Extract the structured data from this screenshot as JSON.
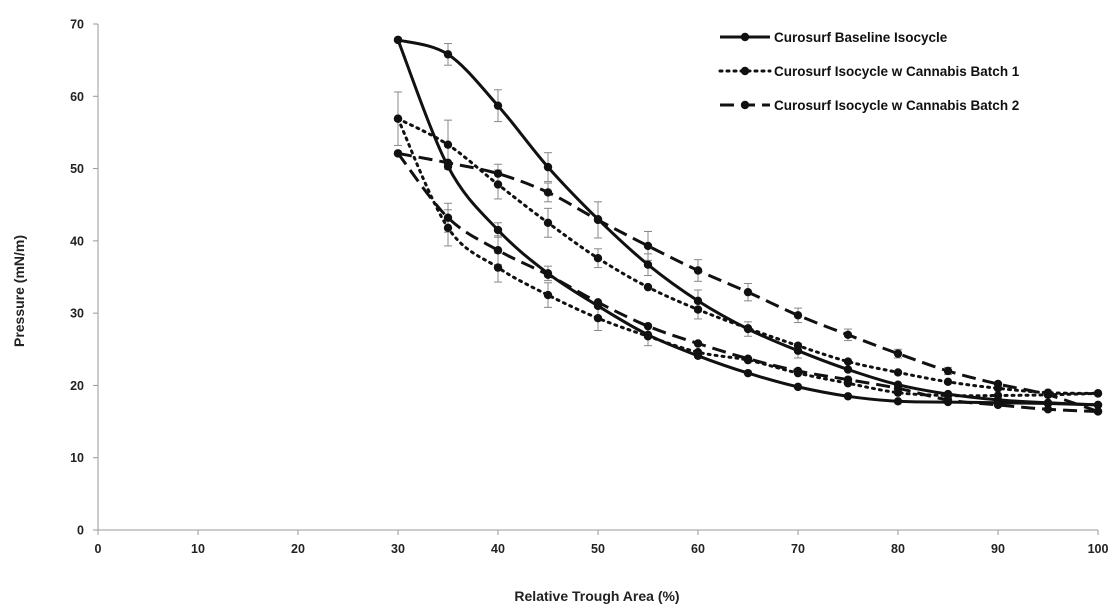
{
  "chart_data": {
    "type": "line",
    "title": "",
    "xlabel": "Relative Trough Area (%)",
    "ylabel": "Pressure (mN/m)",
    "xlim": [
      0,
      100
    ],
    "ylim": [
      0,
      70
    ],
    "x_ticks": [
      0,
      10,
      20,
      30,
      40,
      50,
      60,
      70,
      80,
      90,
      100
    ],
    "y_ticks": [
      0,
      10,
      20,
      30,
      40,
      50,
      60,
      70
    ],
    "grid": false,
    "legend_position": "top-right",
    "colors": {
      "series": "#111111",
      "error_bar": "#888888",
      "axis": "#999999"
    },
    "series": [
      {
        "name": "Curosurf Baseline Isocycle",
        "style": "solid",
        "compression": [
          {
            "x": 100,
            "y": 17.3
          },
          {
            "x": 95,
            "y": 17.5
          },
          {
            "x": 90,
            "y": 17.6
          },
          {
            "x": 85,
            "y": 17.7
          },
          {
            "x": 80,
            "y": 17.8
          },
          {
            "x": 75,
            "y": 18.5
          },
          {
            "x": 70,
            "y": 19.8
          },
          {
            "x": 65,
            "y": 21.7
          },
          {
            "x": 60,
            "y": 24.1
          },
          {
            "x": 55,
            "y": 27.0
          },
          {
            "x": 50,
            "y": 31.0
          },
          {
            "x": 45,
            "y": 35.5
          },
          {
            "x": 40,
            "y": 41.5
          },
          {
            "x": 35,
            "y": 50.3
          },
          {
            "x": 30,
            "y": 67.8
          }
        ],
        "expansion": [
          {
            "x": 30,
            "y": 67.8
          },
          {
            "x": 35,
            "y": 65.8
          },
          {
            "x": 40,
            "y": 58.7
          },
          {
            "x": 45,
            "y": 50.2
          },
          {
            "x": 50,
            "y": 43.0
          },
          {
            "x": 55,
            "y": 36.7
          },
          {
            "x": 60,
            "y": 31.7
          },
          {
            "x": 65,
            "y": 27.8
          },
          {
            "x": 70,
            "y": 24.8
          },
          {
            "x": 75,
            "y": 22.2
          },
          {
            "x": 80,
            "y": 20.1
          },
          {
            "x": 85,
            "y": 18.8
          },
          {
            "x": 90,
            "y": 18.0
          },
          {
            "x": 95,
            "y": 17.6
          },
          {
            "x": 100,
            "y": 17.3
          }
        ],
        "error_bars": [
          {
            "x": 35,
            "y": 65.8,
            "err": 1.5
          },
          {
            "x": 40,
            "y": 58.7,
            "err": 2.2
          },
          {
            "x": 45,
            "y": 50.2,
            "err": 2.0
          },
          {
            "x": 40,
            "y": 41.5,
            "err": 1.0
          },
          {
            "x": 45,
            "y": 35.5,
            "err": 1.0
          },
          {
            "x": 55,
            "y": 36.7,
            "err": 1.5
          },
          {
            "x": 60,
            "y": 31.7,
            "err": 1.5
          },
          {
            "x": 65,
            "y": 27.8,
            "err": 1.0
          },
          {
            "x": 70,
            "y": 24.8,
            "err": 1.0
          }
        ]
      },
      {
        "name": "Curosurf Isocycle w Cannabis Batch 1",
        "style": "dotted",
        "compression": [
          {
            "x": 100,
            "y": 18.9
          },
          {
            "x": 95,
            "y": 18.7
          },
          {
            "x": 90,
            "y": 18.6
          },
          {
            "x": 85,
            "y": 18.6
          },
          {
            "x": 80,
            "y": 19.0
          },
          {
            "x": 75,
            "y": 20.3
          },
          {
            "x": 70,
            "y": 21.7
          },
          {
            "x": 65,
            "y": 23.5
          },
          {
            "x": 60,
            "y": 24.6
          },
          {
            "x": 55,
            "y": 26.8
          },
          {
            "x": 50,
            "y": 29.3
          },
          {
            "x": 45,
            "y": 32.5
          },
          {
            "x": 40,
            "y": 36.3
          },
          {
            "x": 35,
            "y": 41.8
          },
          {
            "x": 30,
            "y": 56.9
          }
        ],
        "expansion": [
          {
            "x": 30,
            "y": 56.9
          },
          {
            "x": 35,
            "y": 53.3
          },
          {
            "x": 40,
            "y": 47.8
          },
          {
            "x": 45,
            "y": 42.5
          },
          {
            "x": 50,
            "y": 37.6
          },
          {
            "x": 55,
            "y": 33.6
          },
          {
            "x": 60,
            "y": 30.5
          },
          {
            "x": 65,
            "y": 27.9
          },
          {
            "x": 70,
            "y": 25.5
          },
          {
            "x": 75,
            "y": 23.3
          },
          {
            "x": 80,
            "y": 21.8
          },
          {
            "x": 85,
            "y": 20.5
          },
          {
            "x": 90,
            "y": 19.6
          },
          {
            "x": 95,
            "y": 19.0
          },
          {
            "x": 100,
            "y": 18.9
          }
        ],
        "error_bars": [
          {
            "x": 30,
            "y": 56.9,
            "err": 3.7
          },
          {
            "x": 35,
            "y": 53.3,
            "err": 3.4
          },
          {
            "x": 40,
            "y": 47.8,
            "err": 2.0
          },
          {
            "x": 45,
            "y": 42.5,
            "err": 2.0
          },
          {
            "x": 35,
            "y": 41.8,
            "err": 2.5
          },
          {
            "x": 40,
            "y": 36.3,
            "err": 2.0
          },
          {
            "x": 45,
            "y": 32.5,
            "err": 1.7
          },
          {
            "x": 50,
            "y": 29.3,
            "err": 1.7
          },
          {
            "x": 55,
            "y": 26.8,
            "err": 1.3
          },
          {
            "x": 50,
            "y": 37.6,
            "err": 1.3
          },
          {
            "x": 60,
            "y": 30.5,
            "err": 1.3
          }
        ]
      },
      {
        "name": "Curosurf Isocycle w Cannabis Batch 2",
        "style": "dashed",
        "compression": [
          {
            "x": 100,
            "y": 16.4
          },
          {
            "x": 95,
            "y": 16.7
          },
          {
            "x": 90,
            "y": 17.3
          },
          {
            "x": 85,
            "y": 18.0
          },
          {
            "x": 80,
            "y": 19.6
          },
          {
            "x": 75,
            "y": 20.8
          },
          {
            "x": 70,
            "y": 22.0
          },
          {
            "x": 65,
            "y": 23.7
          },
          {
            "x": 60,
            "y": 25.8
          },
          {
            "x": 55,
            "y": 28.2
          },
          {
            "x": 50,
            "y": 31.5
          },
          {
            "x": 45,
            "y": 35.3
          },
          {
            "x": 40,
            "y": 38.7
          },
          {
            "x": 35,
            "y": 43.2
          },
          {
            "x": 30,
            "y": 52.1
          }
        ],
        "expansion": [
          {
            "x": 30,
            "y": 52.1
          },
          {
            "x": 35,
            "y": 50.8
          },
          {
            "x": 40,
            "y": 49.3
          },
          {
            "x": 45,
            "y": 46.7
          },
          {
            "x": 50,
            "y": 42.9
          },
          {
            "x": 55,
            "y": 39.3
          },
          {
            "x": 60,
            "y": 35.9
          },
          {
            "x": 65,
            "y": 32.9
          },
          {
            "x": 70,
            "y": 29.7
          },
          {
            "x": 75,
            "y": 27.0
          },
          {
            "x": 80,
            "y": 24.4
          },
          {
            "x": 85,
            "y": 22.0
          },
          {
            "x": 90,
            "y": 20.2
          },
          {
            "x": 95,
            "y": 18.7
          },
          {
            "x": 100,
            "y": 16.4
          }
        ],
        "error_bars": [
          {
            "x": 40,
            "y": 49.3,
            "err": 1.3
          },
          {
            "x": 45,
            "y": 46.7,
            "err": 1.3
          },
          {
            "x": 50,
            "y": 42.9,
            "err": 2.5
          },
          {
            "x": 55,
            "y": 39.3,
            "err": 2.0
          },
          {
            "x": 60,
            "y": 35.9,
            "err": 1.5
          },
          {
            "x": 65,
            "y": 32.9,
            "err": 1.2
          },
          {
            "x": 70,
            "y": 29.7,
            "err": 1.0
          },
          {
            "x": 75,
            "y": 27.0,
            "err": 0.8
          },
          {
            "x": 80,
            "y": 24.4,
            "err": 0.6
          },
          {
            "x": 85,
            "y": 22.0,
            "err": 0.5
          },
          {
            "x": 35,
            "y": 43.2,
            "err": 2.0
          },
          {
            "x": 40,
            "y": 38.7,
            "err": 2.0
          }
        ]
      }
    ]
  }
}
